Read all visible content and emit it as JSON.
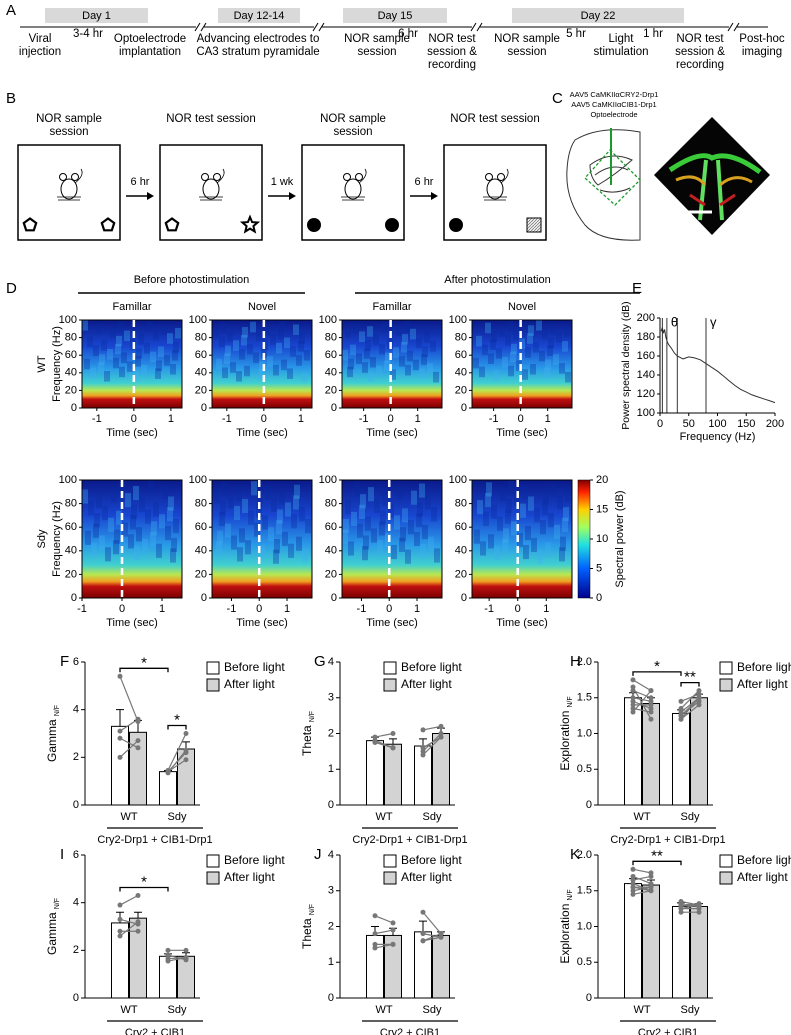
{
  "panel_labels": [
    "A",
    "B",
    "C",
    "D",
    "E",
    "F",
    "G",
    "H",
    "I",
    "J",
    "K"
  ],
  "timeline": {
    "days": [
      "Day 1",
      "Day 12-14",
      "Day 15",
      "Day 22"
    ],
    "steps": [
      "Viral injection",
      "3-4 hr",
      "Optoelectrode implantation",
      "Advancing electrodes to CA3 stratum pyramidale",
      "NOR sample session",
      "6 hr",
      "NOR test session & recording",
      "NOR sample session",
      "5 hr",
      "Light stimulation",
      "1 hr",
      "NOR test session & recording",
      "Post-hoc imaging"
    ]
  },
  "protocol": {
    "sessions": [
      "NOR sample session",
      "NOR test session",
      "NOR sample session",
      "NOR test session"
    ],
    "intervals": [
      "6 hr",
      "1 wk",
      "6 hr"
    ]
  },
  "viral": {
    "lines": [
      "AAV5 CaMKIIαCRY2-Drp1",
      "AAV5 CaMKIIαCIB1-Drp1",
      "Optoelectrode"
    ]
  },
  "spectrograms": {
    "groups": [
      "Before photostimulation",
      "After photostimulation"
    ],
    "conditions": [
      "Famillar",
      "Novel",
      "Famillar",
      "Novel"
    ],
    "genotypes": [
      "WT",
      "Sdy"
    ],
    "ylabel": "Frequency (Hz)",
    "xlabel": "Time (sec)",
    "ylim": [
      0,
      100
    ],
    "yticks": [
      0,
      20,
      40,
      60,
      80,
      100
    ],
    "panels": [
      {
        "xlim": [
          -1.4,
          1.3
        ],
        "xticks": [
          -1,
          0,
          1
        ]
      },
      {
        "xlim": [
          -1.4,
          1.3
        ],
        "xticks": [
          -1,
          0,
          1
        ]
      },
      {
        "xlim": [
          -1.8,
          1.9
        ],
        "xticks": [
          -1,
          0,
          1
        ]
      },
      {
        "xlim": [
          -1.8,
          1.9
        ],
        "xticks": [
          -1,
          0,
          1
        ]
      },
      {
        "xlim": [
          -1,
          1.5
        ],
        "xticks": [
          -1,
          0,
          1
        ]
      },
      {
        "xlim": [
          -1.7,
          1.9
        ],
        "xticks": [
          -1,
          0,
          1
        ]
      },
      {
        "xlim": [
          -1.7,
          1.9
        ],
        "xticks": [
          -1,
          0,
          1
        ]
      },
      {
        "xlim": [
          -1.6,
          1.9
        ],
        "xticks": [
          -1,
          0,
          1
        ]
      }
    ],
    "colorbar": {
      "label": "Spectral power (dB)",
      "lim": [
        0,
        20
      ],
      "ticks": [
        0,
        5,
        10,
        15,
        20
      ]
    }
  },
  "chart_data": [
    {
      "type": "line",
      "ylabel": "Power spectral density (dB)",
      "xlabel": "Frequency (Hz)",
      "xlim": [
        0,
        200
      ],
      "ylim": [
        100,
        200
      ],
      "xticks": [
        0,
        50,
        100,
        150,
        200
      ],
      "yticks": [
        100,
        120,
        140,
        160,
        180,
        200
      ],
      "x": [
        2,
        4,
        6,
        8,
        10,
        12,
        15,
        20,
        25,
        30,
        40,
        50,
        60,
        70,
        80,
        90,
        100,
        110,
        120,
        130,
        140,
        150,
        160,
        170,
        180,
        190,
        200
      ],
      "values": [
        186,
        190,
        184,
        188,
        180,
        176,
        172,
        168,
        163,
        160,
        157,
        159,
        158,
        156,
        152,
        148,
        144,
        139,
        134,
        129,
        125,
        122,
        119,
        117,
        115,
        113,
        111
      ],
      "color": "#333333",
      "bands": [
        {
          "label": "θ",
          "range": [
            4,
            12
          ]
        },
        {
          "label": "γ",
          "range": [
            30,
            80
          ]
        }
      ]
    },
    {
      "type": "bar",
      "ylabel": "Gamma",
      "ylabel_sub": "N/F",
      "ylim": [
        0,
        6
      ],
      "yticks": [
        0,
        2,
        4,
        6
      ],
      "categories": [
        "WT",
        "Sdy"
      ],
      "group_label": "Cry2-Drp1 + CIB1-Drp1",
      "series": [
        {
          "name": "Before light",
          "color": "#ffffff",
          "values": [
            3.3,
            1.4
          ],
          "errors": [
            0.7,
            0.05
          ],
          "points": [
            [
              5.4,
              3.1,
              2.8,
              2.0
            ],
            [
              1.45,
              1.4,
              1.35,
              1.4
            ]
          ]
        },
        {
          "name": "After light",
          "color": "#d3d3d3",
          "values": [
            3.05,
            2.35
          ],
          "errors": [
            0.5,
            0.3
          ],
          "points": [
            [
              3.5,
              3.6,
              2.4,
              2.7
            ],
            [
              3.0,
              2.2,
              2.3,
              1.9
            ]
          ]
        }
      ],
      "significance": [
        {
          "label": "*",
          "between": [
            "WT",
            "Sdy"
          ]
        },
        {
          "label": "*",
          "within": "Sdy"
        }
      ]
    },
    {
      "type": "bar",
      "ylabel": "Theta",
      "ylabel_sub": "N/F",
      "ylim": [
        0,
        4
      ],
      "yticks": [
        0,
        1,
        2,
        3,
        4
      ],
      "categories": [
        "WT",
        "Sdy"
      ],
      "group_label": "Cry2-Drp1 + CIB1-Drp1",
      "series": [
        {
          "name": "Before light",
          "color": "#ffffff",
          "values": [
            1.8,
            1.65
          ],
          "errors": [
            0.1,
            0.2
          ],
          "points": [
            [
              1.9,
              1.8,
              1.75,
              1.8
            ],
            [
              2.1,
              1.4,
              1.5,
              1.6
            ]
          ]
        },
        {
          "name": "After light",
          "color": "#d3d3d3",
          "values": [
            1.7,
            2.0
          ],
          "errors": [
            0.15,
            0.15
          ],
          "points": [
            [
              2.0,
              1.6,
              1.6,
              1.6
            ],
            [
              2.2,
              1.9,
              2.0,
              1.9
            ]
          ]
        }
      ],
      "significance": []
    },
    {
      "type": "bar",
      "ylabel": "Exploration",
      "ylabel_sub": "N/F",
      "ylim": [
        0,
        2
      ],
      "yticks": [
        0,
        0.5,
        {
          "value": 1,
          "label": "1.0"
        },
        1.5,
        {
          "value": 2,
          "label": "2.0"
        }
      ],
      "categories": [
        "WT",
        "Sdy"
      ],
      "group_label": "Cry2-Drp1 + CIB1-Drp1",
      "series": [
        {
          "name": "Before light",
          "color": "#ffffff",
          "values": [
            1.5,
            1.28
          ],
          "errors": [
            0.07,
            0.05
          ],
          "points": [
            [
              1.75,
              1.65,
              1.6,
              1.5,
              1.45,
              1.35,
              1.3,
              1.4
            ],
            [
              1.45,
              1.35,
              1.3,
              1.25,
              1.2,
              1.2,
              1.25,
              1.25
            ]
          ]
        },
        {
          "name": "After light",
          "color": "#d3d3d3",
          "values": [
            1.42,
            1.5
          ],
          "errors": [
            0.08,
            0.05
          ],
          "points": [
            [
              1.6,
              1.2,
              1.5,
              1.45,
              1.35,
              1.3,
              1.6,
              1.4
            ],
            [
              1.55,
              1.6,
              1.5,
              1.45,
              1.4,
              1.5,
              1.5,
              1.45
            ]
          ]
        }
      ],
      "significance": [
        {
          "label": "*",
          "between": [
            "WT",
            "Sdy"
          ]
        },
        {
          "label": "**",
          "within": "Sdy"
        }
      ]
    },
    {
      "type": "bar",
      "ylabel": "Gamma",
      "ylabel_sub": "N/F",
      "ylim": [
        0,
        6
      ],
      "yticks": [
        0,
        2,
        4,
        6
      ],
      "categories": [
        "WT",
        "Sdy"
      ],
      "group_label": "Cry2 + CIB1",
      "series": [
        {
          "name": "Before light",
          "color": "#ffffff",
          "values": [
            3.15,
            1.75
          ],
          "errors": [
            0.45,
            0.1
          ],
          "points": [
            [
              3.9,
              3.3,
              2.6,
              2.8
            ],
            [
              2.0,
              1.8,
              1.65,
              1.55
            ]
          ]
        },
        {
          "name": "After light",
          "color": "#d3d3d3",
          "values": [
            3.35,
            1.75
          ],
          "errors": [
            0.25,
            0.15
          ],
          "points": [
            [
              4.3,
              3.1,
              3.2,
              2.8
            ],
            [
              2.0,
              1.6,
              1.7,
              1.7
            ]
          ]
        }
      ],
      "significance": [
        {
          "label": "*",
          "between": [
            "WT",
            "Sdy"
          ]
        }
      ]
    },
    {
      "type": "bar",
      "ylabel": "Theta",
      "ylabel_sub": "N/F",
      "ylim": [
        0,
        4
      ],
      "yticks": [
        0,
        1,
        2,
        3,
        4
      ],
      "categories": [
        "WT",
        "Sdy"
      ],
      "group_label": "Cry2 + CIB1",
      "series": [
        {
          "name": "Before light",
          "color": "#ffffff",
          "values": [
            1.75,
            1.85
          ],
          "errors": [
            0.25,
            0.3
          ],
          "points": [
            [
              2.3,
              1.8,
              1.4,
              1.5
            ],
            [
              2.4,
              1.8,
              1.6,
              1.6
            ]
          ]
        },
        {
          "name": "After light",
          "color": "#d3d3d3",
          "values": [
            1.75,
            1.75
          ],
          "errors": [
            0.2,
            0.1
          ],
          "points": [
            [
              2.1,
              1.9,
              1.5,
              1.5
            ],
            [
              1.8,
              1.7,
              1.8,
              1.7
            ]
          ]
        }
      ],
      "significance": []
    },
    {
      "type": "bar",
      "ylabel": "Exploration",
      "ylabel_sub": "N/F",
      "ylim": [
        0,
        2
      ],
      "yticks": [
        0,
        0.5,
        {
          "value": 1,
          "label": "1.0"
        },
        1.5,
        {
          "value": 2,
          "label": "2.0"
        }
      ],
      "categories": [
        "WT",
        "Sdy"
      ],
      "group_label": "Cry2 + CIB1",
      "series": [
        {
          "name": "Before light",
          "color": "#ffffff",
          "values": [
            1.6,
            1.28
          ],
          "errors": [
            0.07,
            0.05
          ],
          "points": [
            [
              1.8,
              1.7,
              1.65,
              1.6,
              1.55,
              1.5,
              1.45,
              1.55
            ],
            [
              1.35,
              1.3,
              1.3,
              1.25,
              1.25,
              1.2,
              1.3,
              1.29
            ]
          ]
        },
        {
          "name": "After light",
          "color": "#d3d3d3",
          "values": [
            1.58,
            1.28
          ],
          "errors": [
            0.07,
            0.04
          ],
          "points": [
            [
              1.75,
              1.6,
              1.7,
              1.5,
              1.55,
              1.55,
              1.5,
              1.5
            ],
            [
              1.3,
              1.28,
              1.3,
              1.25,
              1.3,
              1.2,
              1.32,
              1.29
            ]
          ]
        }
      ],
      "significance": [
        {
          "label": "**",
          "between": [
            "WT",
            "Sdy"
          ]
        }
      ]
    }
  ]
}
